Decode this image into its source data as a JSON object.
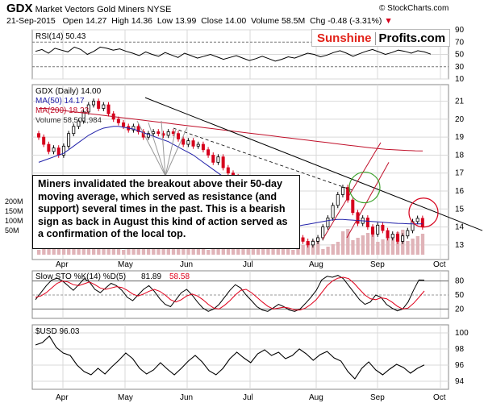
{
  "header": {
    "symbol": "GDX",
    "name": "Market Vectors Gold Miners",
    "exchange": "NYSE",
    "date": "21-Sep-2015",
    "open_label": "Open",
    "open": "14.27",
    "high_label": "High",
    "high": "14.36",
    "low_label": "Low",
    "low": "13.99",
    "close_label": "Close",
    "close": "14.00",
    "volume_label": "Volume",
    "volume": "58.5M",
    "chg_label": "Chg",
    "chg": "-0.48 (-3.31%)",
    "chg_arrow": "▼",
    "credit": "© StockCharts.com"
  },
  "brand": {
    "part1": "Sunshine",
    "part2": "Profits.com"
  },
  "annotation": "Miners invalidated the breakout above their 50-day moving average, which served as resistance (and support) several times in the past. This is a bearish sign as back in August this kind of action served as a confirmation of the local top.",
  "colors": {
    "up": "#000000",
    "down": "#d6001c",
    "ma50": "#2222aa",
    "ma200": "#c0102a",
    "volume": "#e0b3b8",
    "stoch_d": "#e0001b",
    "grid": "#d9d9d9"
  },
  "chart_data": [
    {
      "type": "line",
      "title": "RSI(14) 50.43",
      "series": [
        {
          "name": "RSI(14)",
          "last": 50.43,
          "values": [
            55,
            58,
            52,
            60,
            57,
            54,
            62,
            58,
            50,
            55,
            62,
            60,
            57,
            59,
            55,
            52,
            48,
            54,
            50,
            47,
            53,
            49,
            45,
            52,
            48,
            44,
            47,
            50,
            46,
            42,
            45,
            48,
            44,
            40,
            43,
            47,
            43,
            39,
            42,
            46,
            44,
            48,
            52,
            50,
            46,
            49,
            53,
            56,
            52,
            47,
            51,
            55,
            58,
            54,
            50,
            53,
            57,
            55,
            52,
            56,
            54,
            50.43
          ]
        }
      ],
      "yticks": [
        10,
        30,
        50,
        70,
        90
      ],
      "ylim": [
        10,
        90
      ],
      "levels": [
        30,
        70
      ]
    },
    {
      "type": "candlestick",
      "title": "GDX (Daily) 14.00",
      "legend": [
        "MA(50) 14.17",
        "MA(200) 18.23",
        "Volume 58,501,984"
      ],
      "xlabels": [
        "Apr",
        "May",
        "Jun",
        "Jul",
        "Aug",
        "Sep",
        "Oct"
      ],
      "yticks": [
        13,
        14,
        15,
        16,
        17,
        18,
        19,
        20,
        21
      ],
      "volume_ticks": [
        "200M",
        "150M",
        "100M",
        "50M"
      ],
      "ylim": [
        12.5,
        21.7
      ],
      "closes": [
        19.0,
        18.6,
        18.2,
        18.4,
        18.0,
        18.5,
        19.2,
        19.6,
        19.9,
        20.4,
        20.8,
        21.0,
        20.6,
        20.8,
        20.3,
        20.0,
        19.8,
        19.6,
        19.4,
        19.6,
        19.3,
        19.0,
        19.2,
        19.3,
        19.2,
        19.1,
        19.3,
        19.2,
        18.9,
        18.6,
        18.8,
        18.5,
        18.6,
        18.3,
        18.0,
        17.6,
        17.9,
        17.3,
        17.0,
        16.8,
        16.5,
        16.1,
        15.6,
        15.3,
        14.9,
        14.2,
        13.8,
        13.4,
        13.3,
        13.1,
        13.4,
        13.6,
        13.4,
        13.2,
        13.0,
        13.2,
        13.4,
        14.0,
        14.5,
        15.2,
        15.8,
        16.2,
        15.5,
        14.8,
        14.2,
        14.5,
        14.0,
        13.6,
        14.1,
        13.8,
        13.4,
        13.6,
        13.2,
        13.5,
        13.8,
        14.3,
        14.48,
        14.0
      ],
      "ma50": [
        17.6,
        17.7,
        17.8,
        17.9,
        18.0,
        18.1,
        18.3,
        18.5,
        18.7,
        18.9,
        19.1,
        19.25,
        19.4,
        19.5,
        19.55,
        19.6,
        19.6,
        19.55,
        19.5,
        19.45,
        19.35,
        19.25,
        19.15,
        19.05,
        18.95,
        18.85,
        18.75,
        18.6,
        18.45,
        18.3,
        18.15,
        18.0,
        17.8,
        17.6,
        17.4,
        17.2,
        17.0,
        16.8,
        16.6,
        16.4,
        16.2,
        16.0,
        15.8,
        15.55,
        15.3,
        15.05,
        14.8,
        14.55,
        14.35,
        14.2,
        14.1,
        14.05,
        14.05,
        14.1,
        14.15,
        14.2,
        14.25,
        14.3,
        14.35,
        14.4,
        14.42,
        14.42,
        14.4,
        14.38,
        14.36,
        14.34,
        14.32,
        14.3,
        14.28,
        14.26,
        14.24,
        14.22,
        14.2,
        14.19,
        14.18,
        14.17,
        14.17,
        14.17
      ],
      "ma200": [
        20.6,
        20.6,
        20.55,
        20.5,
        20.45,
        20.4,
        20.35,
        20.3,
        20.25,
        20.2,
        20.15,
        20.1,
        20.05,
        20.0,
        19.95,
        19.9,
        19.85,
        19.8,
        19.75,
        19.7,
        19.65,
        19.6,
        19.55,
        19.5,
        19.45,
        19.4,
        19.35,
        19.3,
        19.25,
        19.2,
        19.15,
        19.1,
        19.05,
        19.0,
        18.95,
        18.9,
        18.85,
        18.8,
        18.75,
        18.7,
        18.65,
        18.6,
        18.55,
        18.5,
        18.45,
        18.4,
        18.36,
        18.32,
        18.3,
        18.28,
        18.26,
        18.24,
        18.23
      ]
    },
    {
      "type": "line",
      "title": "Slow STO %K(14) %D(5)",
      "k_last": "81.89",
      "d_last": "58.58",
      "series": [
        {
          "name": "%K",
          "values": [
            40,
            55,
            70,
            82,
            86,
            80,
            70,
            60,
            72,
            85,
            78,
            62,
            55,
            65,
            75,
            70,
            60,
            45,
            38,
            50,
            62,
            70,
            58,
            42,
            30,
            25,
            40,
            55,
            62,
            50,
            35,
            22,
            15,
            20,
            30,
            45,
            60,
            72,
            65,
            50,
            38,
            25,
            18,
            15,
            22,
            30,
            25,
            18,
            15,
            20,
            32,
            45,
            60,
            82,
            90,
            88,
            92,
            85,
            70,
            55,
            40,
            30,
            35,
            50,
            45,
            30,
            22,
            16,
            20,
            35,
            60,
            82,
            81.89
          ]
        },
        {
          "name": "%D",
          "values": [
            45,
            48,
            55,
            65,
            75,
            80,
            78,
            72,
            70,
            74,
            78,
            72,
            65,
            62,
            65,
            68,
            66,
            60,
            52,
            48,
            52,
            58,
            62,
            58,
            50,
            40,
            35,
            40,
            48,
            52,
            48,
            40,
            30,
            22,
            20,
            28,
            38,
            50,
            60,
            62,
            55,
            45,
            35,
            26,
            20,
            22,
            24,
            22,
            18,
            18,
            22,
            30,
            40,
            55,
            70,
            80,
            86,
            88,
            85,
            75,
            62,
            50,
            42,
            40,
            44,
            42,
            35,
            26,
            20,
            22,
            32,
            45,
            58.58
          ]
        }
      ],
      "yticks": [
        20,
        50,
        80
      ],
      "ylim": [
        0,
        100
      ]
    },
    {
      "type": "line",
      "title": "$USD 96.03",
      "series": [
        {
          "name": "$USD",
          "last": 96.03,
          "values": [
            98.5,
            98.8,
            99.6,
            98.2,
            97.5,
            97.2,
            96.0,
            95.2,
            94.8,
            95.6,
            94.9,
            95.8,
            96.6,
            97.5,
            96.8,
            95.6,
            94.9,
            95.4,
            96.3,
            95.5,
            94.8,
            95.6,
            96.5,
            97.2,
            96.4,
            95.3,
            94.8,
            95.6,
            96.8,
            97.6,
            96.9,
            96.3,
            97.4,
            97.9,
            97.2,
            97.6,
            96.8,
            97.2,
            98.0,
            97.4,
            96.6,
            97.3,
            97.7,
            96.9,
            96.5,
            95.2,
            94.3,
            95.6,
            96.4,
            95.4,
            94.8,
            95.5,
            96.1,
            95.7,
            95.0,
            95.6,
            96.03
          ]
        }
      ],
      "yticks": [
        94,
        96,
        98,
        100
      ],
      "ylim": [
        93,
        101
      ]
    }
  ]
}
